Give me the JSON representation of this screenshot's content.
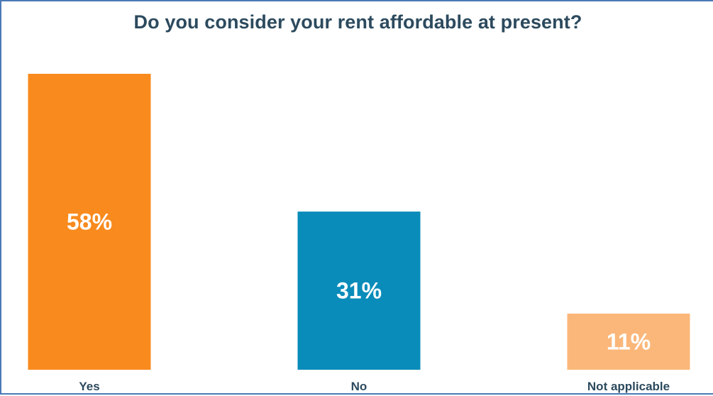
{
  "chart_data": {
    "type": "bar",
    "title": "Do you consider your rent affordable at present?",
    "categories": [
      "Yes",
      "No",
      "Not applicable"
    ],
    "values": [
      58,
      31,
      11
    ],
    "value_labels": [
      "58%",
      "31%",
      "11%"
    ],
    "colors": [
      "#f98a1e",
      "#0a8cba",
      "#fbb77a"
    ],
    "ylim": [
      0,
      58
    ],
    "grid": false,
    "legend": "none"
  }
}
